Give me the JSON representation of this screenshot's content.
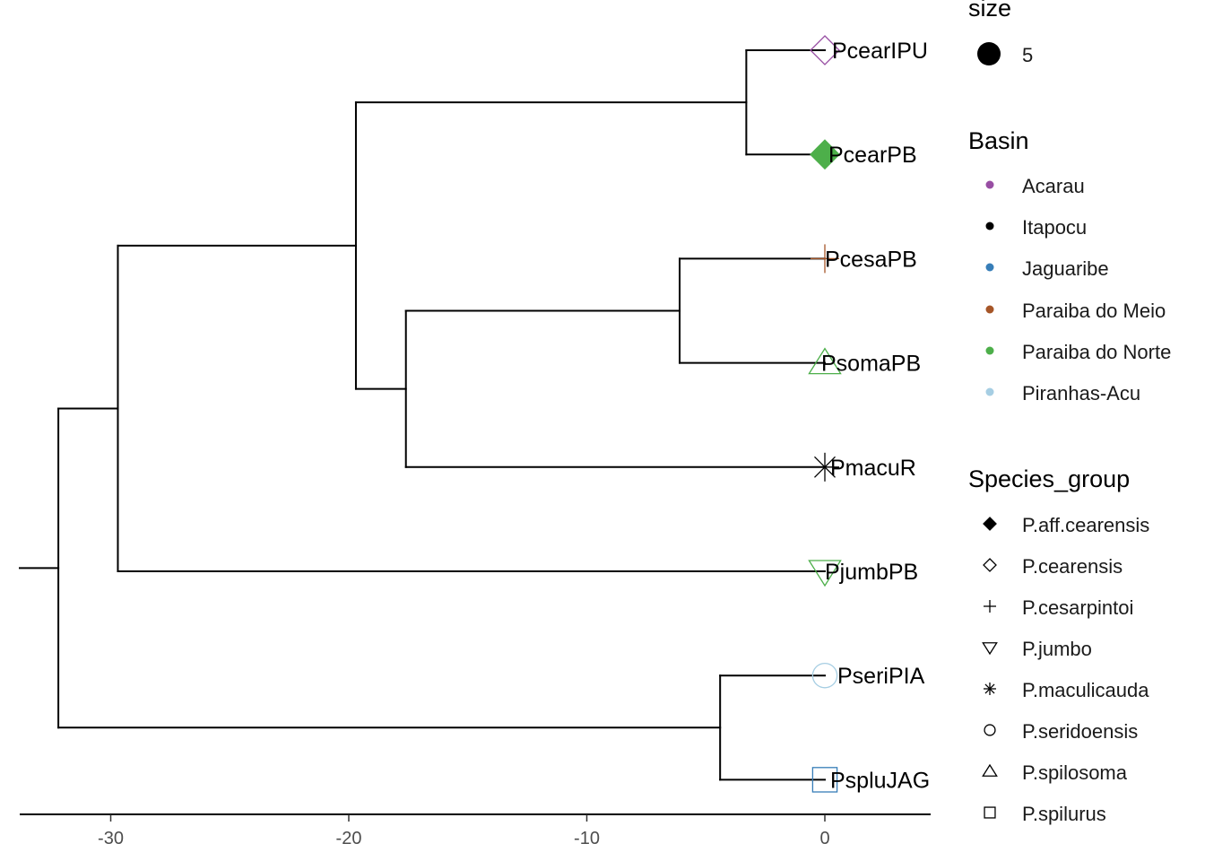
{
  "chart_data": {
    "type": "phylogenetic-tree",
    "x_axis": {
      "ticks": [
        -30,
        -20,
        -10,
        0
      ],
      "range": [
        -34,
        4.3
      ]
    },
    "tips": [
      {
        "label": "PcearIPU",
        "species_group": "P.cearensis",
        "basin": "Acarau",
        "color": "#984EA3",
        "shape": "diamond-open"
      },
      {
        "label": "PcearPB",
        "species_group": "P.aff.cearensis",
        "basin": "Paraiba do Norte",
        "color": "#4DAF4A",
        "shape": "diamond-filled"
      },
      {
        "label": "PcesaPB",
        "species_group": "P.cesarpintoi",
        "basin": "Paraiba do Meio",
        "color": "#A65628",
        "shape": "plus"
      },
      {
        "label": "PsomaPB",
        "species_group": "P.spilosoma",
        "basin": "Paraiba do Norte",
        "color": "#4DAF4A",
        "shape": "triangle-open"
      },
      {
        "label": "PmacuR",
        "species_group": "P.maculicauda",
        "basin": "Itapocu",
        "color": "#000000",
        "shape": "asterisk"
      },
      {
        "label": "PjumbPB",
        "species_group": "P.jumbo",
        "basin": "Paraiba do Norte",
        "color": "#4DAF4A",
        "shape": "triangle-down-open"
      },
      {
        "label": "PseriPIA",
        "species_group": "P.seridoensis",
        "basin": "Piranhas-Acu",
        "color": "#A6CEE3",
        "shape": "circle-open"
      },
      {
        "label": "PspluJAG",
        "species_group": "P.spilurus",
        "basin": "Jaguaribe",
        "color": "#377EB8",
        "shape": "square-open"
      }
    ],
    "nodes": [
      {
        "id": "root",
        "x": -32.2,
        "children": [
          "n1",
          "n6"
        ]
      },
      {
        "id": "n1",
        "x": -29.7,
        "children": [
          "n2",
          "t5"
        ]
      },
      {
        "id": "n2",
        "x": -19.7,
        "children": [
          "n3",
          "n4"
        ]
      },
      {
        "id": "n3",
        "x": -3.3,
        "children": [
          "t0",
          "t1"
        ]
      },
      {
        "id": "n4",
        "x": -17.6,
        "children": [
          "n5",
          "t4"
        ]
      },
      {
        "id": "n5",
        "x": -6.1,
        "children": [
          "t2",
          "t3"
        ]
      },
      {
        "id": "n6",
        "x": -4.4,
        "children": [
          "t6",
          "t7"
        ]
      }
    ]
  },
  "legend": {
    "size": {
      "title": "size",
      "value": "5"
    },
    "basin": {
      "title": "Basin",
      "items": [
        {
          "label": "Acarau",
          "color": "#984EA3"
        },
        {
          "label": "Itapocu",
          "color": "#000000"
        },
        {
          "label": "Jaguaribe",
          "color": "#377EB8"
        },
        {
          "label": "Paraiba do Meio",
          "color": "#A65628"
        },
        {
          "label": "Paraiba do Norte",
          "color": "#4DAF4A"
        },
        {
          "label": "Piranhas-Acu",
          "color": "#A6CEE3"
        }
      ]
    },
    "species_group": {
      "title": "Species_group",
      "items": [
        {
          "label": "P.aff.cearensis",
          "shape": "diamond-filled"
        },
        {
          "label": "P.cearensis",
          "shape": "diamond-open"
        },
        {
          "label": "P.cesarpintoi",
          "shape": "plus"
        },
        {
          "label": "P.jumbo",
          "shape": "triangle-down-open"
        },
        {
          "label": "P.maculicauda",
          "shape": "asterisk"
        },
        {
          "label": "P.seridoensis",
          "shape": "circle-open"
        },
        {
          "label": "P.spilosoma",
          "shape": "triangle-open"
        },
        {
          "label": "P.spilurus",
          "shape": "square-open"
        }
      ]
    }
  }
}
